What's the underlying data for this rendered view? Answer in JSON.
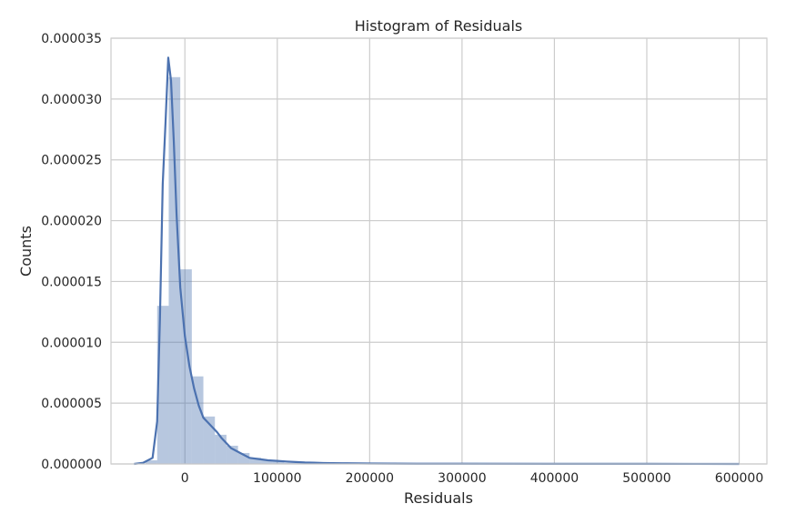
{
  "chart_data": {
    "type": "bar",
    "title": "Histogram of Residuals",
    "xlabel": "Residuals",
    "ylabel": "Counts",
    "xlim": [
      -80000,
      630000
    ],
    "ylim": [
      0,
      3.5e-05
    ],
    "x_ticks": [
      0,
      100000,
      200000,
      300000,
      400000,
      500000,
      600000
    ],
    "x_tick_labels": [
      "0",
      "100000",
      "200000",
      "300000",
      "400000",
      "500000",
      "600000"
    ],
    "y_ticks": [
      0,
      5e-06,
      1e-05,
      1.5e-05,
      2e-05,
      2.5e-05,
      3e-05,
      3.5e-05
    ],
    "y_tick_labels": [
      "0.000000",
      "0.000005",
      "0.000010",
      "0.000015",
      "0.000020",
      "0.000025",
      "0.000030",
      "0.000035"
    ],
    "grid": true,
    "histogram": {
      "series_name": "density",
      "color": "#4c72b0",
      "bins": [
        {
          "x0": -55000,
          "x1": -42500,
          "value": 0.0
        },
        {
          "x0": -42500,
          "x1": -30000,
          "value": 3e-07
        },
        {
          "x0": -30000,
          "x1": -17500,
          "value": 1.3e-05
        },
        {
          "x0": -17500,
          "x1": -5000,
          "value": 3.18e-05
        },
        {
          "x0": -5000,
          "x1": 7500,
          "value": 1.6e-05
        },
        {
          "x0": 7500,
          "x1": 20000,
          "value": 7.2e-06
        },
        {
          "x0": 20000,
          "x1": 32500,
          "value": 3.9e-06
        },
        {
          "x0": 32500,
          "x1": 45000,
          "value": 2.4e-06
        },
        {
          "x0": 45000,
          "x1": 57500,
          "value": 1.5e-06
        },
        {
          "x0": 57500,
          "x1": 70000,
          "value": 9e-07
        },
        {
          "x0": 70000,
          "x1": 82500,
          "value": 5e-07
        },
        {
          "x0": 82500,
          "x1": 95000,
          "value": 3e-07
        },
        {
          "x0": 95000,
          "x1": 107500,
          "value": 2e-07
        },
        {
          "x0": 107500,
          "x1": 120000,
          "value": 1e-07
        },
        {
          "x0": 120000,
          "x1": 132500,
          "value": 1e-07
        },
        {
          "x0": 132500,
          "x1": 145000,
          "value": 8e-08
        }
      ]
    },
    "kde": {
      "series_name": "kde",
      "color": "#4c72b0",
      "x": [
        -55000,
        -45000,
        -35000,
        -30000,
        -27000,
        -24000,
        -21000,
        -18000,
        -15000,
        -12000,
        -9000,
        -5000,
        0,
        5000,
        10000,
        15000,
        20000,
        25000,
        30000,
        35000,
        40000,
        50000,
        60000,
        70000,
        80000,
        90000,
        100000,
        110000,
        120000,
        130000,
        140000,
        150000,
        170000,
        200000,
        250000,
        300000,
        400000,
        500000,
        600000
      ],
      "y": [
        0.0,
        1e-07,
        5e-07,
        3.5e-06,
        1.2e-05,
        2.3e-05,
        2.8e-05,
        3.34e-05,
        3.15e-05,
        2.65e-05,
        2.05e-05,
        1.45e-05,
        1.05e-05,
        8e-06,
        6.2e-06,
        4.8e-06,
        3.8e-06,
        3.4e-06,
        3e-06,
        2.6e-06,
        2.1e-06,
        1.3e-06,
        9e-07,
        5e-07,
        4e-07,
        3e-07,
        2.5e-07,
        2e-07,
        1.6e-07,
        1.2e-07,
        1e-07,
        8e-08,
        6e-08,
        4e-08,
        2e-08,
        2e-08,
        1e-08,
        1e-08,
        0.0
      ]
    }
  }
}
